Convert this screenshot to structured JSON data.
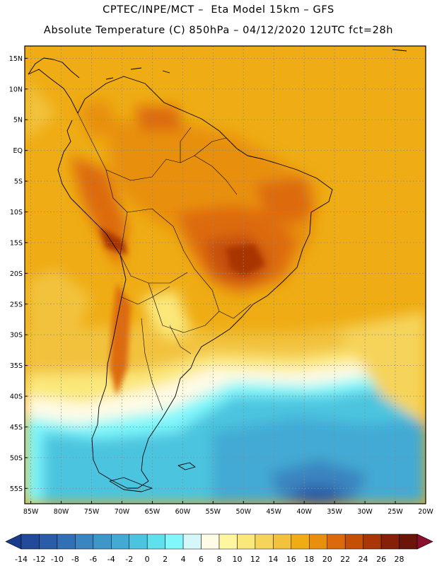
{
  "header": {
    "line1": "CPTEC/INPE/MCT –  Eta Model 15km – GFS",
    "line2": "Absolute Temperature (C) 850hPa – 04/12/2020 12UTC fct=28h"
  },
  "map": {
    "lat_labels": [
      "15N",
      "10N",
      "5N",
      "EQ",
      "5S",
      "10S",
      "15S",
      "20S",
      "25S",
      "30S",
      "35S",
      "40S",
      "45S",
      "50S",
      "55S"
    ],
    "lat_values": [
      15,
      10,
      5,
      0,
      -5,
      -10,
      -15,
      -20,
      -25,
      -30,
      -35,
      -40,
      -45,
      -50,
      -55
    ],
    "lon_labels": [
      "85W",
      "80W",
      "75W",
      "70W",
      "65W",
      "60W",
      "55W",
      "50W",
      "45W",
      "40W",
      "35W",
      "30W",
      "25W",
      "20W"
    ],
    "lon_values": [
      -85,
      -80,
      -75,
      -70,
      -65,
      -60,
      -55,
      -50,
      -45,
      -40,
      -35,
      -30,
      -25,
      -20
    ],
    "lat_range": [
      -57.5,
      17.0
    ],
    "lon_range": [
      -86.0,
      -20.0
    ]
  },
  "colorbar": {
    "labels": [
      "-14",
      "-12",
      "-10",
      "-8",
      "-6",
      "-4",
      "-2",
      "0",
      "2",
      "4",
      "6",
      "8",
      "10",
      "12",
      "14",
      "16",
      "18",
      "20",
      "22",
      "24",
      "26",
      "28"
    ],
    "colors": [
      "#1a3c8c",
      "#214b9a",
      "#2a5ca8",
      "#3170b4",
      "#3a84bf",
      "#3f97c9",
      "#42aad4",
      "#4cc4df",
      "#5fe0ee",
      "#7ff7fb",
      "#d6f7fa",
      "#fffbe6",
      "#fff7a0",
      "#fbe87a",
      "#f6d45a",
      "#f2c23c",
      "#efac14",
      "#e8900e",
      "#dd6a0a",
      "#c64f08",
      "#a83606",
      "#862008",
      "#6a1508",
      "#8a1030"
    ]
  }
}
